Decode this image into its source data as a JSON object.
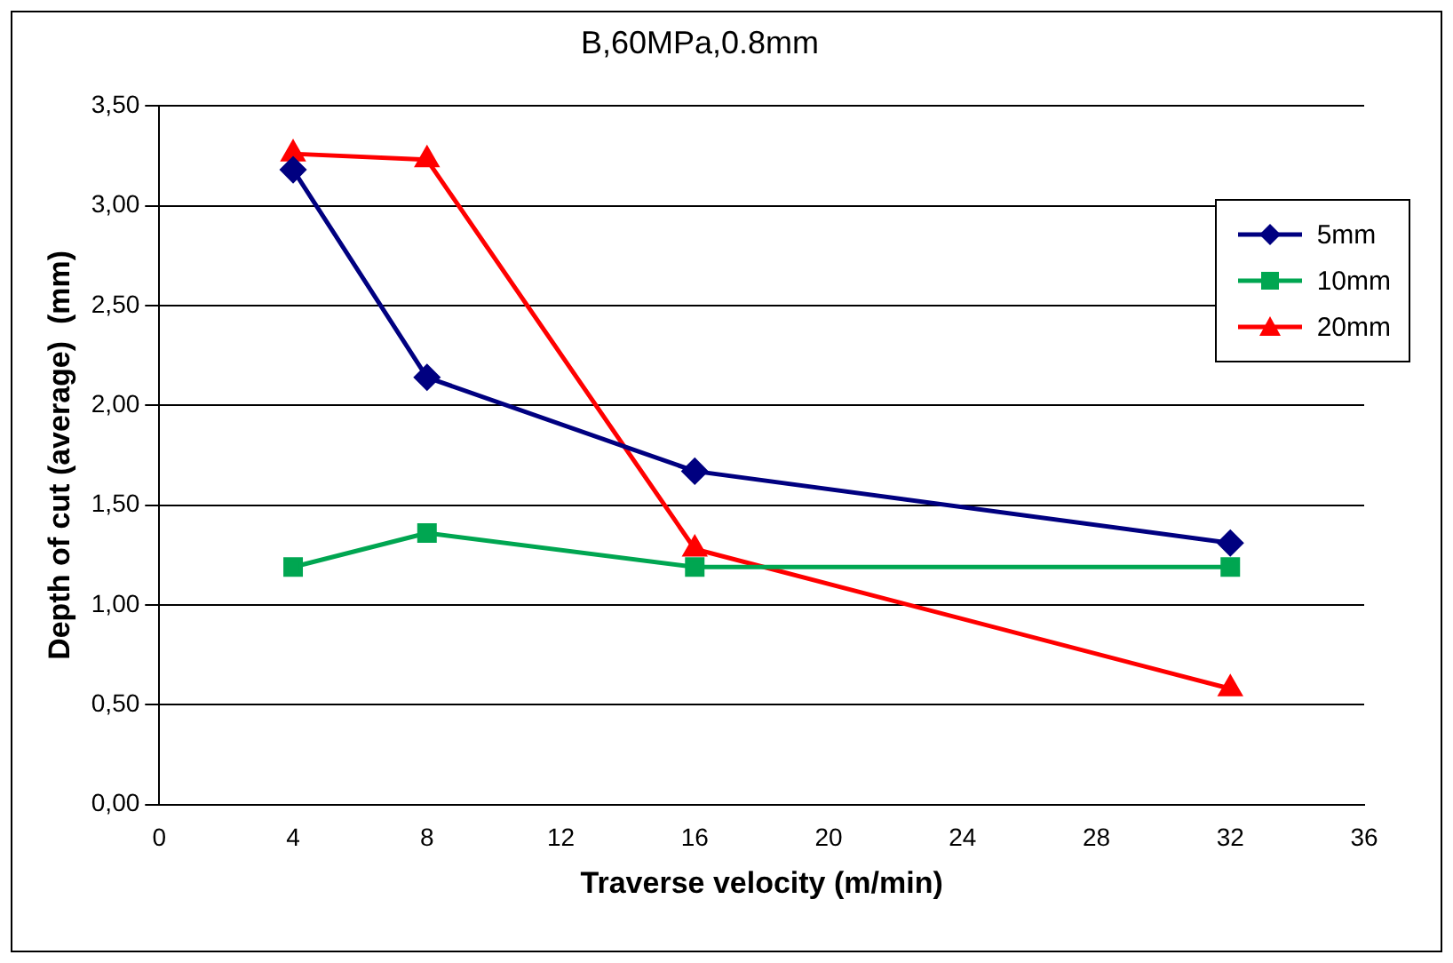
{
  "chart_data": {
    "type": "line",
    "title": "B,60MPa,0.8mm",
    "xlabel": "Traverse velocity (m/min)",
    "ylabel": "Depth of cut (average)  (mm)",
    "x": [
      4,
      8,
      16,
      32
    ],
    "series": [
      {
        "name": "5mm",
        "color": "#000080",
        "marker": "diamond",
        "values": [
          3.18,
          2.14,
          1.67,
          1.31
        ]
      },
      {
        "name": "10mm",
        "color": "#00a651",
        "marker": "square",
        "values": [
          1.19,
          1.36,
          1.19,
          1.19
        ]
      },
      {
        "name": "20mm",
        "color": "#ff0000",
        "marker": "triangle",
        "values": [
          3.26,
          3.23,
          1.28,
          0.58
        ]
      }
    ],
    "xlim": [
      0,
      36
    ],
    "xticks": [
      0,
      4,
      8,
      12,
      16,
      20,
      24,
      28,
      32,
      36
    ],
    "ylim": [
      0,
      3.5
    ],
    "yticks": [
      {
        "value": 0,
        "label": "0,00"
      },
      {
        "value": 0.5,
        "label": "0,50"
      },
      {
        "value": 1,
        "label": "1,00"
      },
      {
        "value": 1.5,
        "label": "1,50"
      },
      {
        "value": 2,
        "label": "2,00"
      },
      {
        "value": 2.5,
        "label": "2,50"
      },
      {
        "value": 3,
        "label": "3,00"
      },
      {
        "value": 3.5,
        "label": "3,50"
      }
    ],
    "grid": "y",
    "legend": "top right",
    "line_style": "solid"
  }
}
